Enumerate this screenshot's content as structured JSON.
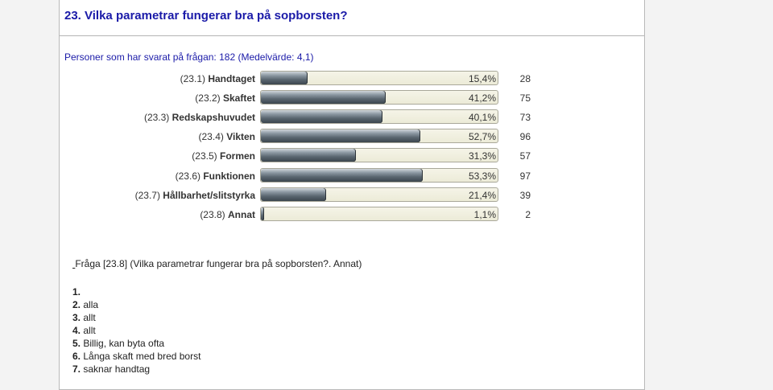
{
  "title": "23. Vilka parametrar fungerar bra på sopborsten?",
  "subtitle": "Personer som har svarat på frågan: 182 (Medelvärde: 4,1)",
  "chart_data": {
    "type": "bar",
    "orientation": "horizontal",
    "categories": [
      {
        "code": "(23.1)",
        "name": "Handtaget"
      },
      {
        "code": "(23.2)",
        "name": "Skaftet"
      },
      {
        "code": "(23.3)",
        "name": "Redskapshuvudet"
      },
      {
        "code": "(23.4)",
        "name": "Vikten"
      },
      {
        "code": "(23.5)",
        "name": "Formen"
      },
      {
        "code": "(23.6)",
        "name": "Funktionen"
      },
      {
        "code": "(23.7)",
        "name": "Hållbarhet/slitstyrka"
      },
      {
        "code": "(23.8)",
        "name": "Annat"
      }
    ],
    "percent_values": [
      15.4,
      41.2,
      40.1,
      52.7,
      31.3,
      53.3,
      21.4,
      1.1
    ],
    "percent_labels": [
      "15,4%",
      "41,2%",
      "40,1%",
      "52,7%",
      "31,3%",
      "53,3%",
      "21,4%",
      "1,1%"
    ],
    "counts": [
      "28",
      "75",
      "73",
      "96",
      "57",
      "97",
      "39",
      "2"
    ],
    "xlim": [
      0,
      100
    ]
  },
  "question": {
    "prefix": "Fråga [23.8] (Vilka parametrar fungerar bra på sopborsten?. Annat)"
  },
  "answers": [
    {
      "num": "1.",
      "text": ""
    },
    {
      "num": "2.",
      "text": "alla"
    },
    {
      "num": "3.",
      "text": "allt"
    },
    {
      "num": "4.",
      "text": "allt"
    },
    {
      "num": "5.",
      "text": "Billig, kan byta ofta"
    },
    {
      "num": "6.",
      "text": "Långa skaft med bred borst"
    },
    {
      "num": "7.",
      "text": "saknar handtag"
    }
  ]
}
